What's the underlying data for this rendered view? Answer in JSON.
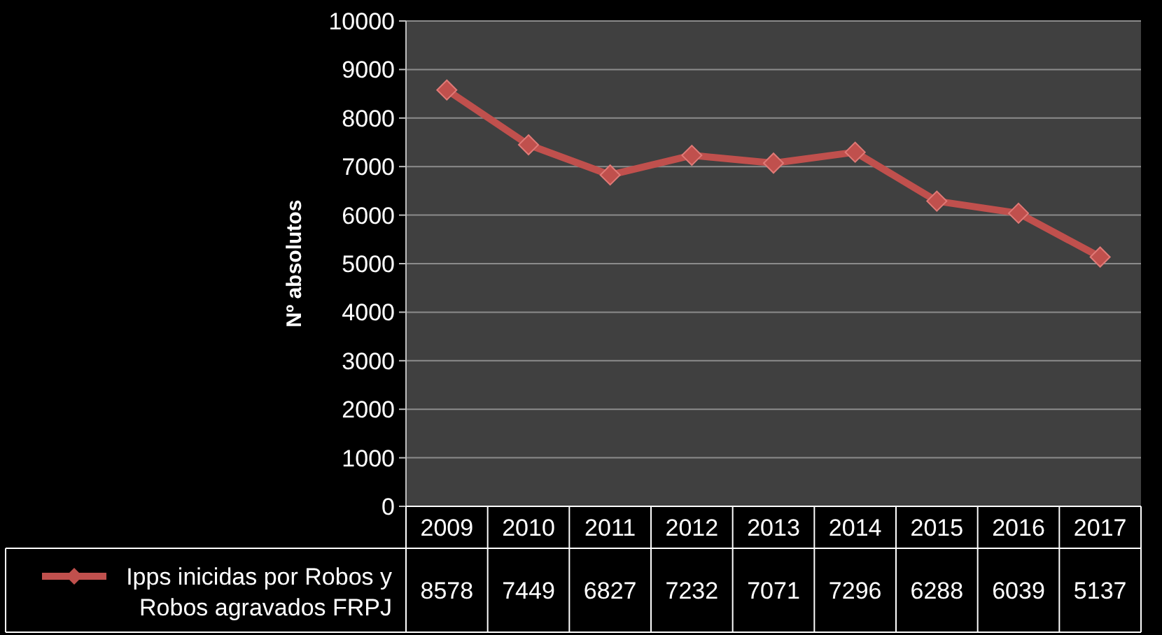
{
  "chart_data": {
    "type": "line",
    "ylabel": "Nº absolutos",
    "categories": [
      "2009",
      "2010",
      "2011",
      "2012",
      "2013",
      "2014",
      "2015",
      "2016",
      "2017"
    ],
    "series": [
      {
        "name": "Ipps inicidas por Robos y Robos agravados FRPJ",
        "color": "#c0504d",
        "values": [
          8578,
          7449,
          6827,
          7232,
          7071,
          7296,
          6288,
          6039,
          5137
        ]
      }
    ],
    "ylim": [
      0,
      10000
    ],
    "yticks": [
      0,
      1000,
      2000,
      3000,
      4000,
      5000,
      6000,
      7000,
      8000,
      9000,
      10000
    ],
    "grid": "y",
    "marker": "diamond",
    "line_style": "solid",
    "data_labels": true,
    "legend": "bottom left"
  }
}
